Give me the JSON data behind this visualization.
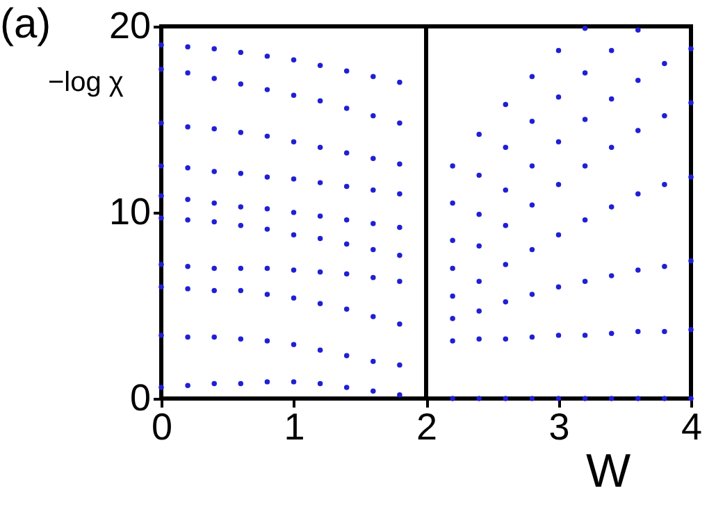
{
  "chart_data": {
    "type": "scatter",
    "xlabel": "W",
    "ylabel": "−log χ",
    "annotations": [
      "(a)"
    ],
    "xlim": [
      0,
      4
    ],
    "ylim": [
      0,
      20
    ],
    "xticks": [
      0,
      1,
      2,
      3,
      4
    ],
    "yticks": [
      0,
      10,
      20
    ],
    "grid": false,
    "legend": false,
    "marker": "circle",
    "ref_lines": [
      {
        "axis": "x",
        "value": 2,
        "color": "#000000"
      }
    ],
    "series": [
      {
        "color": "#1f1fd6",
        "x": [
          0,
          0.2,
          0.4,
          0.6,
          0.8,
          1.0,
          1.2,
          1.4,
          1.6,
          1.8
        ],
        "values": [
          0.6,
          0.7,
          0.8,
          0.8,
          0.9,
          0.9,
          0.8,
          0.6,
          0.4,
          0.2
        ]
      },
      {
        "color": "#1f1fd6",
        "x": [
          0,
          0.2,
          0.4,
          0.6,
          0.8,
          1.0,
          1.2,
          1.4,
          1.6,
          1.8
        ],
        "values": [
          3.4,
          3.3,
          3.3,
          3.2,
          3.1,
          2.9,
          2.6,
          2.3,
          2.0,
          1.8
        ]
      },
      {
        "color": "#1f1fd6",
        "x": [
          0,
          0.2,
          0.4,
          0.6,
          0.8,
          1.0,
          1.2,
          1.4,
          1.6,
          1.8
        ],
        "values": [
          6.0,
          5.9,
          5.8,
          5.8,
          5.6,
          5.4,
          5.1,
          4.8,
          4.4,
          4.0
        ]
      },
      {
        "color": "#1f1fd6",
        "x": [
          0,
          0.2,
          0.4,
          0.6,
          0.8,
          1.0,
          1.2,
          1.4,
          1.6,
          1.8
        ],
        "values": [
          7.2,
          7.1,
          7.0,
          7.0,
          7.0,
          6.9,
          6.8,
          6.7,
          6.5,
          6.3
        ]
      },
      {
        "color": "#1f1fd6",
        "x": [
          0,
          0.2,
          0.4,
          0.6,
          0.8,
          1.0,
          1.2,
          1.4,
          1.6,
          1.8
        ],
        "values": [
          9.7,
          9.6,
          9.5,
          9.3,
          9.1,
          8.8,
          8.6,
          8.3,
          8.0,
          7.7
        ]
      },
      {
        "color": "#1f1fd6",
        "x": [
          0,
          0.2,
          0.4,
          0.6,
          0.8,
          1.0,
          1.2,
          1.4,
          1.6,
          1.8
        ],
        "values": [
          10.9,
          10.7,
          10.5,
          10.3,
          10.2,
          10.0,
          9.8,
          9.6,
          9.4,
          9.2
        ]
      },
      {
        "color": "#1f1fd6",
        "x": [
          0,
          0.2,
          0.4,
          0.6,
          0.8,
          1.0,
          1.2,
          1.4,
          1.6,
          1.8
        ],
        "values": [
          12.5,
          12.4,
          12.2,
          12.1,
          11.9,
          11.8,
          11.6,
          11.4,
          11.2,
          11.0
        ]
      },
      {
        "color": "#1f1fd6",
        "x": [
          0,
          0.2,
          0.4,
          0.6,
          0.8,
          1.0,
          1.2,
          1.4,
          1.6,
          1.8
        ],
        "values": [
          14.8,
          14.6,
          14.5,
          14.3,
          14.1,
          13.8,
          13.5,
          13.2,
          12.9,
          12.6
        ]
      },
      {
        "color": "#1f1fd6",
        "x": [
          0,
          0.2,
          0.4,
          0.6,
          0.8,
          1.0,
          1.2,
          1.4,
          1.6,
          1.8
        ],
        "values": [
          17.7,
          17.5,
          17.2,
          16.9,
          16.6,
          16.3,
          16.0,
          15.6,
          15.2,
          14.8
        ]
      },
      {
        "color": "#1f1fd6",
        "x": [
          0,
          0.2,
          0.4,
          0.6,
          0.8,
          1.0,
          1.2,
          1.4,
          1.6,
          1.8
        ],
        "values": [
          19.0,
          18.9,
          18.8,
          18.6,
          18.4,
          18.2,
          17.9,
          17.6,
          17.3,
          17.0
        ]
      },
      {
        "color": "#1f1fd6",
        "x": [
          2.2,
          2.4,
          2.6,
          2.8,
          3.0,
          3.2,
          3.4,
          3.6,
          3.8,
          4.0
        ],
        "values": [
          0,
          0,
          0,
          0,
          0,
          0,
          0,
          0,
          0,
          0
        ]
      },
      {
        "color": "#1f1fd6",
        "x": [
          2.2,
          2.4,
          2.6,
          2.8,
          3.0,
          3.2,
          3.4,
          3.6,
          3.8,
          4.0
        ],
        "values": [
          3.1,
          3.2,
          3.2,
          3.3,
          3.4,
          3.4,
          3.5,
          3.6,
          3.6,
          3.7
        ]
      },
      {
        "color": "#1f1fd6",
        "x": [
          2.2,
          2.4,
          2.6,
          2.8,
          3.0,
          3.2,
          3.4,
          3.6,
          3.8,
          4.0
        ],
        "values": [
          4.3,
          4.7,
          5.2,
          5.6,
          6.0,
          6.3,
          6.6,
          6.9,
          7.1,
          7.4
        ]
      },
      {
        "color": "#1f1fd6",
        "x": [
          2.2,
          2.4,
          2.6,
          2.8,
          3.0,
          3.2,
          3.4,
          3.6,
          3.8,
          4.0
        ],
        "values": [
          5.5,
          6.3,
          7.2,
          8.0,
          8.8,
          9.6,
          10.3,
          11.0,
          11.5,
          11.9
        ]
      },
      {
        "color": "#1f1fd6",
        "x": [
          2.2,
          2.4,
          2.6,
          2.8,
          3.0,
          3.2,
          3.4,
          3.6,
          3.8,
          4.0
        ],
        "values": [
          7.0,
          8.2,
          9.3,
          10.4,
          11.5,
          12.5,
          13.5,
          14.4,
          15.2,
          15.9
        ]
      },
      {
        "color": "#1f1fd6",
        "x": [
          2.2,
          2.4,
          2.6,
          2.8,
          3.0,
          3.2,
          3.4,
          3.6,
          3.8,
          4.0
        ],
        "values": [
          8.5,
          9.9,
          11.2,
          12.5,
          13.8,
          15.0,
          16.1,
          17.1,
          18.0,
          18.8
        ]
      },
      {
        "color": "#1f1fd6",
        "x": [
          2.2,
          2.4,
          2.6,
          2.8,
          3.0,
          3.2,
          3.4,
          3.6
        ],
        "values": [
          10.5,
          12.0,
          13.5,
          14.9,
          16.2,
          17.5,
          18.7,
          19.8
        ]
      },
      {
        "color": "#1f1fd6",
        "x": [
          2.2,
          2.4,
          2.6,
          2.8,
          3.0,
          3.2
        ],
        "values": [
          12.5,
          14.2,
          15.8,
          17.3,
          18.7,
          19.9
        ]
      }
    ]
  }
}
